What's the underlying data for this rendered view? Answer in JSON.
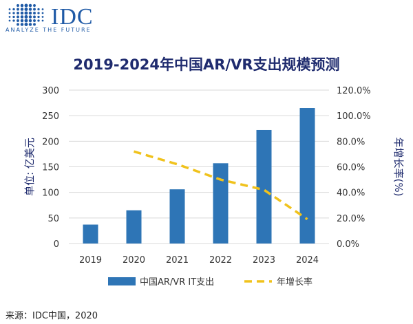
{
  "logo": {
    "name": "IDC",
    "tagline": "ANALYZE THE FUTURE"
  },
  "source": "来源：IDC中国，2020",
  "chart_data": {
    "type": "bar",
    "title": "2019-2024年中国AR/VR支出规模预测",
    "categories": [
      "2019",
      "2020",
      "2021",
      "2022",
      "2023",
      "2024"
    ],
    "series": [
      {
        "name": "中国AR/VR IT支出",
        "type": "bar",
        "axis": "left",
        "color": "#2e75b6",
        "values": [
          37,
          65,
          106,
          157,
          222,
          265
        ]
      },
      {
        "name": "年增长率",
        "type": "line",
        "axis": "right",
        "color": "#f0c21c",
        "style": "dashed",
        "values": [
          null,
          0.72,
          0.62,
          0.5,
          0.42,
          0.19
        ]
      }
    ],
    "ylabel": "单位: 亿美元",
    "y2label": "年增长率(%)",
    "ylim": [
      0,
      300
    ],
    "yticks": [
      "0",
      "50",
      "100",
      "150",
      "200",
      "250",
      "300"
    ],
    "y2lim": [
      0,
      1.2
    ],
    "y2ticks": [
      "0.0%",
      "20.0%",
      "40.0%",
      "60.0%",
      "80.0%",
      "100.0%",
      "120.0%"
    ],
    "grid": true,
    "legend_position": "bottom"
  }
}
